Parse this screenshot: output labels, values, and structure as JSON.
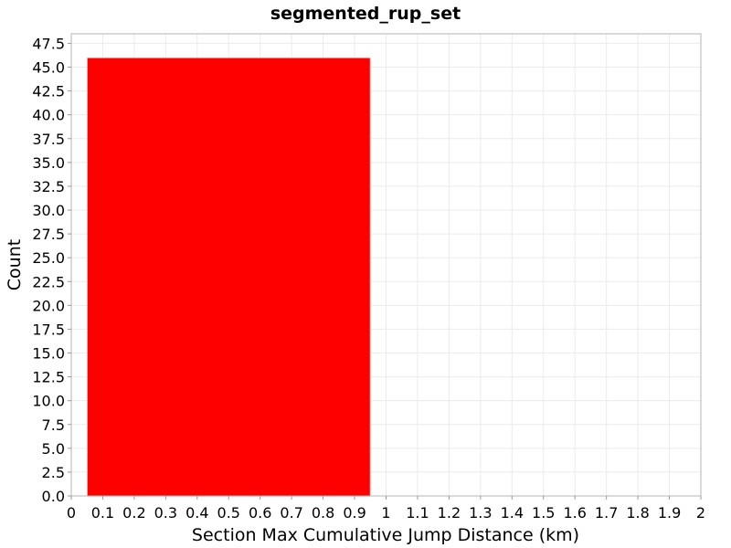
{
  "chart_data": {
    "type": "bar",
    "title": "segmented_rup_set",
    "xlabel": "Section Max Cumulative Jump Distance (km)",
    "ylabel": "Count",
    "xlim": [
      0,
      2
    ],
    "ylim": [
      0,
      48.5
    ],
    "x_ticks": [
      "0",
      "0.1",
      "0.2",
      "0.3",
      "0.4",
      "0.5",
      "0.6",
      "0.7",
      "0.8",
      "0.9",
      "1",
      "1.1",
      "1.2",
      "1.3",
      "1.4",
      "1.5",
      "1.6",
      "1.7",
      "1.8",
      "1.9",
      "2"
    ],
    "y_ticks": [
      "0.0",
      "2.5",
      "5.0",
      "7.5",
      "10.0",
      "12.5",
      "15.0",
      "17.5",
      "20.0",
      "22.5",
      "25.0",
      "27.5",
      "30.0",
      "32.5",
      "35.0",
      "37.5",
      "40.0",
      "42.5",
      "45.0",
      "47.5"
    ],
    "grid": true,
    "bars": [
      {
        "x_start": 0.05,
        "x_end": 0.95,
        "value": 46
      }
    ],
    "colors": {
      "bar": "#ff0000",
      "grid": "#ebebeb"
    }
  }
}
